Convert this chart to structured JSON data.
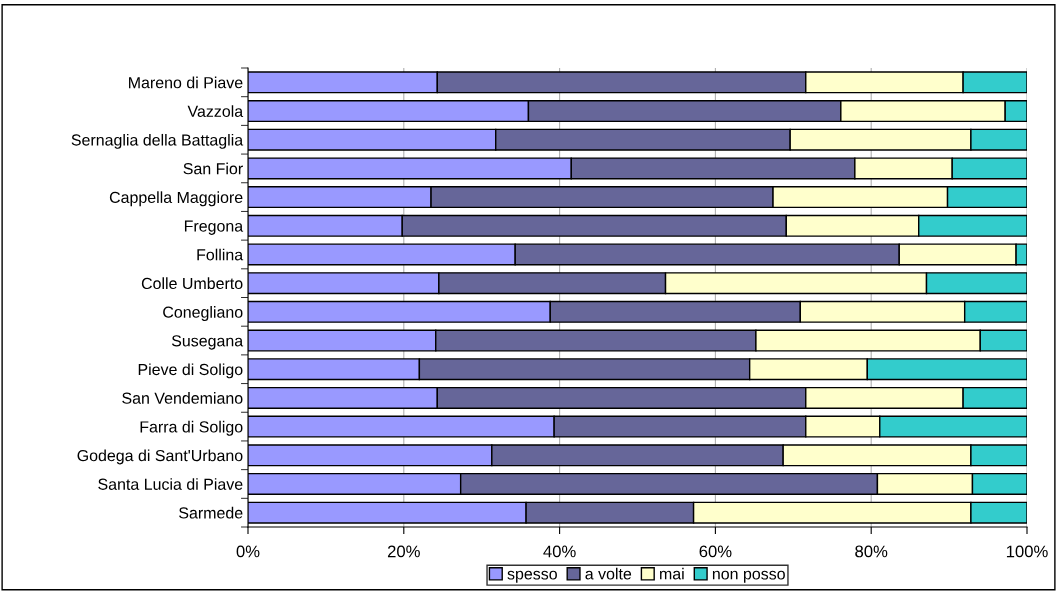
{
  "chart_data": {
    "type": "bar",
    "orientation": "horizontal",
    "stacked": true,
    "categories": [
      "Mareno di Piave",
      "Vazzola",
      "Sernaglia della Battaglia",
      "San Fior",
      "Cappella Maggiore",
      "Fregona",
      "Follina",
      "Colle Umberto",
      "Conegliano",
      "Susegana",
      "Pieve di Soligo",
      "San Vendemiano",
      "Farra di Soligo",
      "Godega di Sant'Urbano",
      "Santa Lucia di Piave",
      "Sarmede"
    ],
    "series": [
      {
        "name": "spesso",
        "color": "#9999ff",
        "values": [
          24.3,
          36.0,
          31.8,
          41.5,
          23.5,
          19.8,
          34.3,
          24.5,
          38.8,
          24.1,
          22.0,
          24.3,
          39.3,
          31.3,
          27.3,
          35.7
        ]
      },
      {
        "name": "a volte",
        "color": "#666699",
        "values": [
          47.3,
          40.1,
          37.8,
          36.4,
          43.9,
          49.3,
          49.3,
          29.1,
          32.1,
          41.1,
          42.4,
          47.3,
          32.3,
          37.4,
          53.5,
          21.5
        ]
      },
      {
        "name": "mai",
        "color": "#ffffcc",
        "values": [
          20.2,
          21.1,
          23.2,
          12.5,
          22.4,
          17.0,
          15.0,
          33.5,
          21.1,
          28.8,
          15.1,
          20.2,
          9.5,
          24.1,
          12.2,
          35.6
        ]
      },
      {
        "name": "non posso",
        "color": "#33cccc",
        "values": [
          8.2,
          2.8,
          7.2,
          9.6,
          10.2,
          13.9,
          1.4,
          12.9,
          8.0,
          6.0,
          20.5,
          8.2,
          18.9,
          7.2,
          7.0,
          7.2
        ]
      }
    ],
    "xlim": [
      0,
      100
    ],
    "xticks": [
      {
        "value": 0,
        "label": "0%"
      },
      {
        "value": 20,
        "label": "20%"
      },
      {
        "value": 40,
        "label": "40%"
      },
      {
        "value": 60,
        "label": "60%"
      },
      {
        "value": 80,
        "label": "80%"
      },
      {
        "value": 100,
        "label": "100%"
      }
    ],
    "grid": "x",
    "legend": "bottom"
  }
}
